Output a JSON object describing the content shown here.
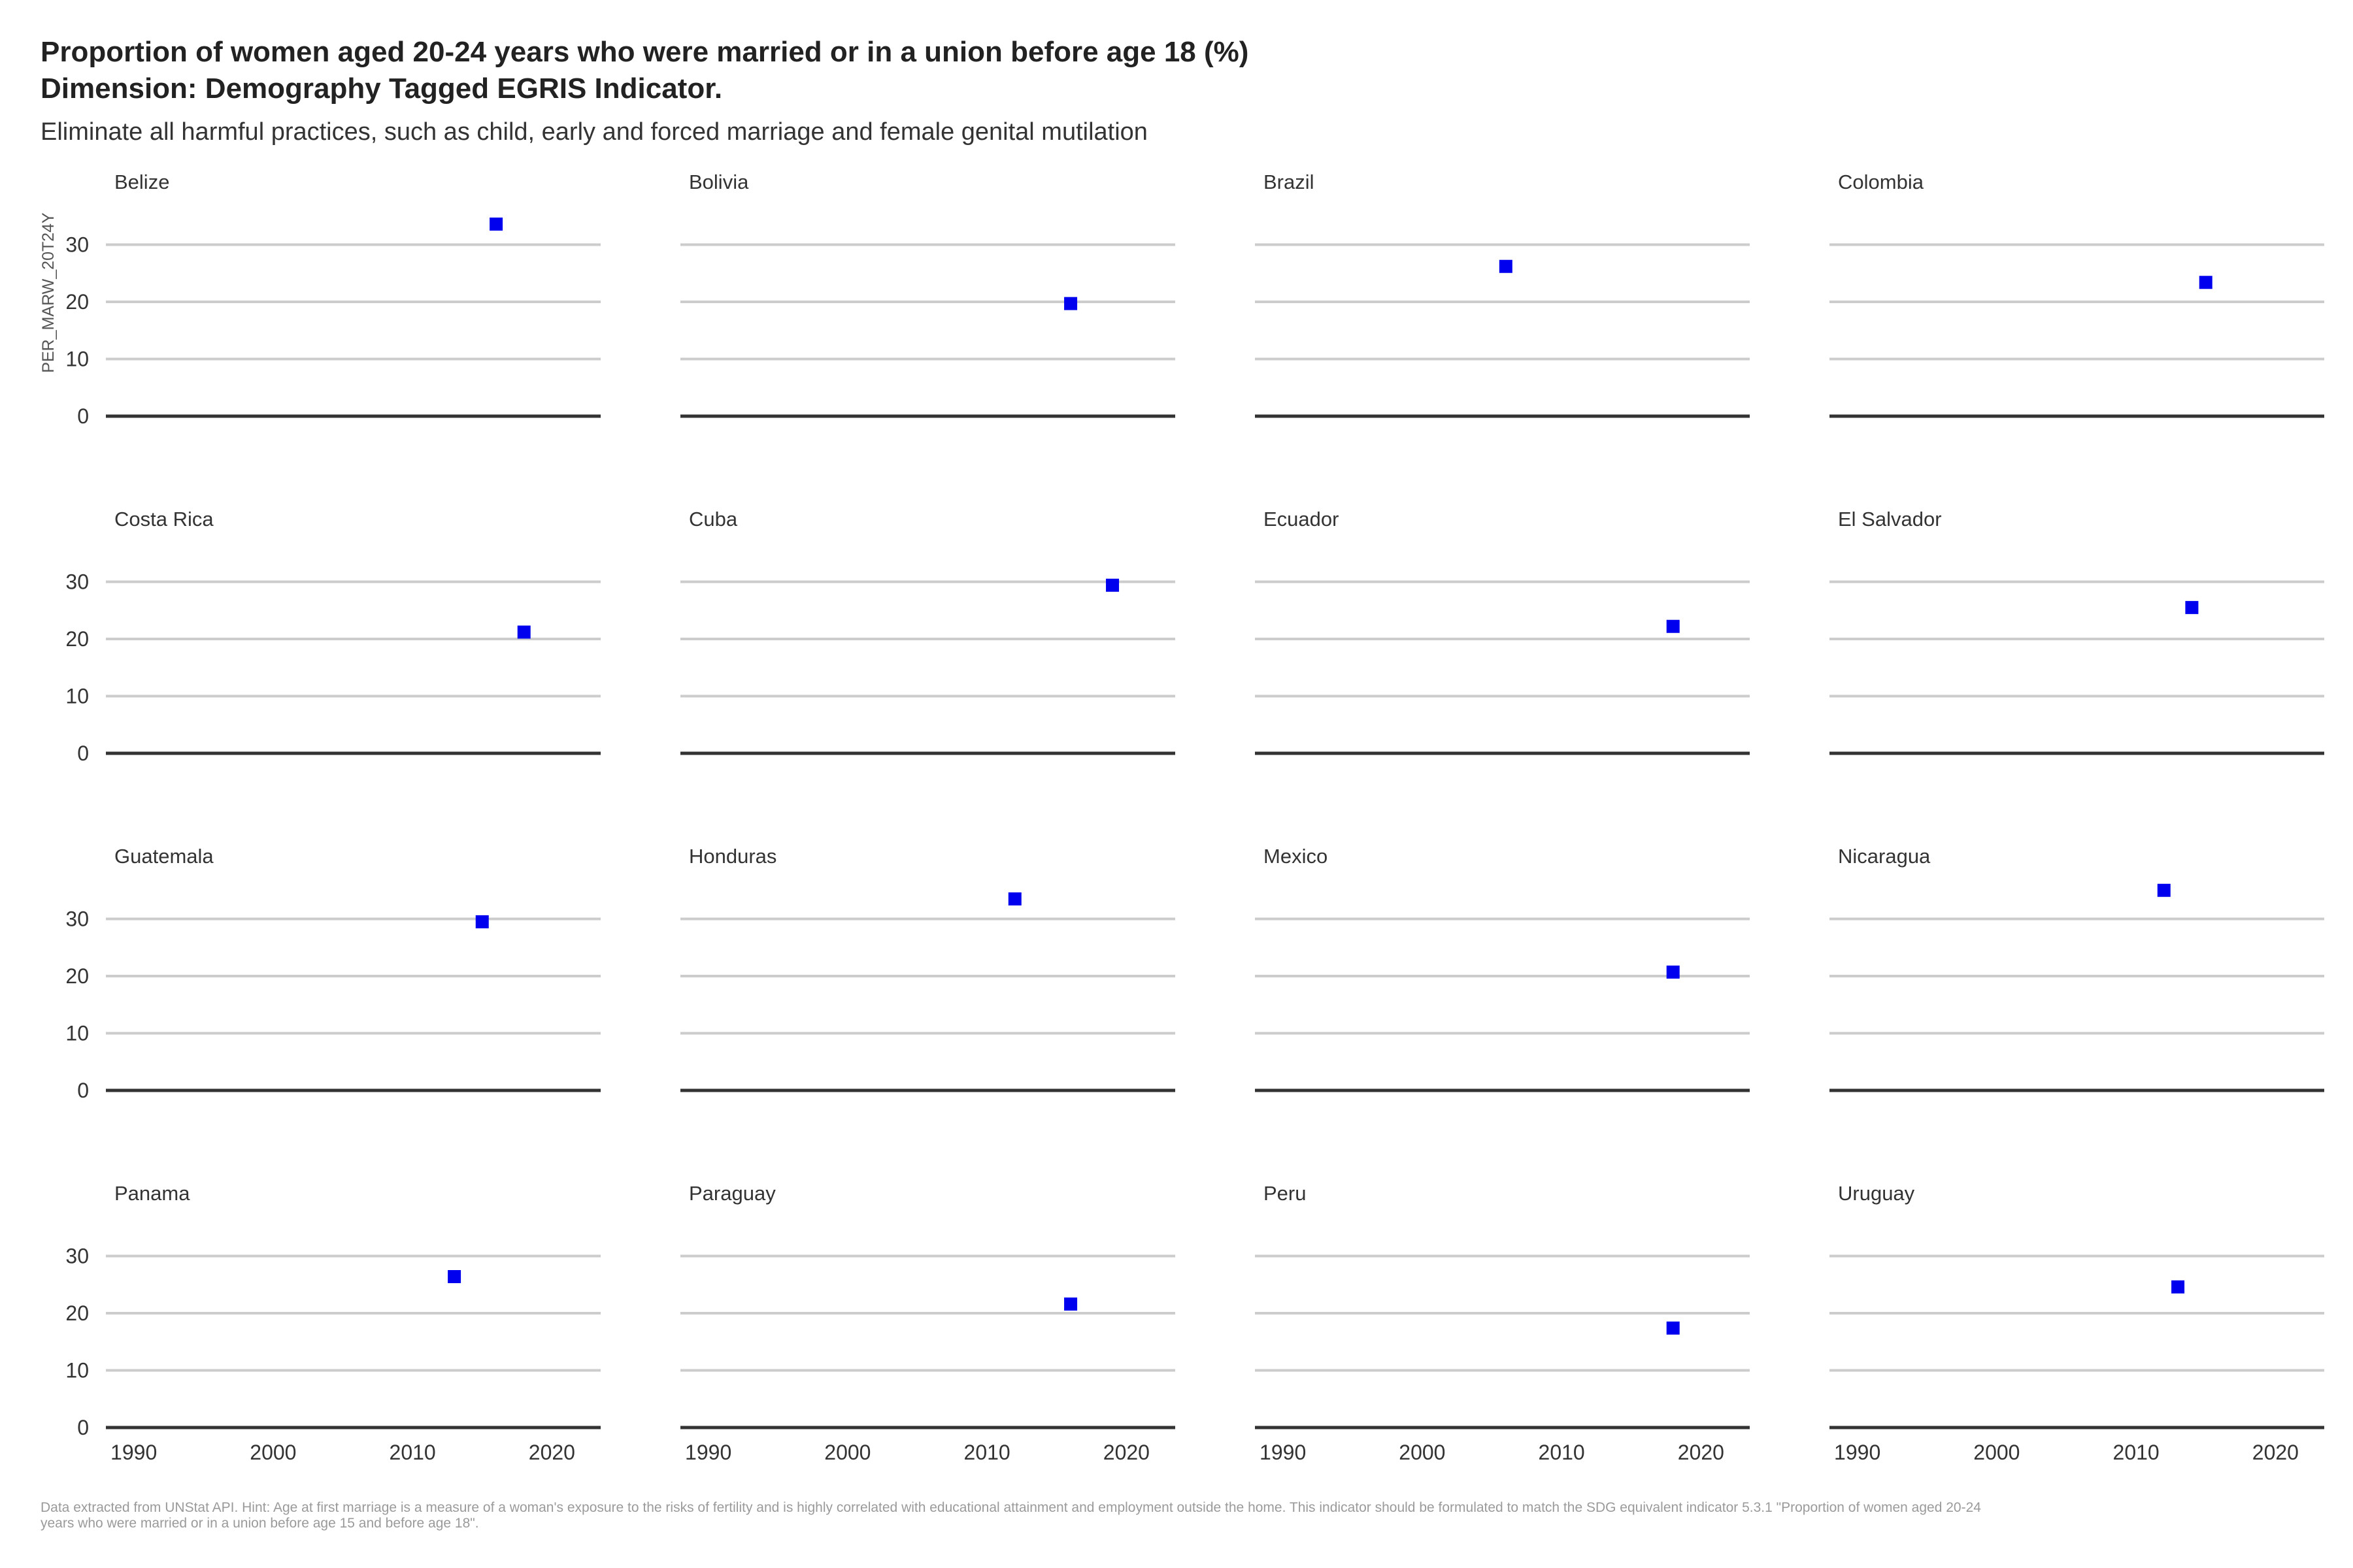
{
  "title_line1": "Proportion of women aged 20-24 years who were married or in a union before age 18 (%)",
  "title_line2": "Dimension: Demography Tagged EGRIS Indicator.",
  "subtitle": "Eliminate all harmful practices, such as child, early and forced marriage and female genital mutilation",
  "caption_line1": "Data extracted from UNStat API. Hint: Age at first marriage is a measure of a woman's exposure to the risks of fertility and is highly correlated with educational attainment and employment outside the home. This indicator should be formulated to match the SDG equivalent indicator 5.3.1 \"Proportion of women aged 20-24",
  "caption_line2": "years who were married or in a union before age 15 and before age 18\".",
  "colors": {
    "point": "#0000ee",
    "grid": "#cccccc",
    "baseline": "#333333"
  },
  "chart_data": {
    "type": "scatter",
    "facet": "small-multiples",
    "ylabel": "PER_MARW_20T24Y",
    "xlim": [
      1988,
      2023.5
    ],
    "ylim": [
      0,
      36
    ],
    "x_ticks": [
      1990,
      2000,
      2010,
      2020
    ],
    "y_ticks": [
      0,
      10,
      20,
      30
    ],
    "grid": true,
    "marker": "square",
    "series": [
      {
        "name": "Belize",
        "x": [
          2016
        ],
        "y": [
          33.6
        ]
      },
      {
        "name": "Bolivia",
        "x": [
          2016
        ],
        "y": [
          19.7
        ]
      },
      {
        "name": "Brazil",
        "x": [
          2006
        ],
        "y": [
          26.2
        ]
      },
      {
        "name": "Colombia",
        "x": [
          2015
        ],
        "y": [
          23.4
        ]
      },
      {
        "name": "Costa Rica",
        "x": [
          2018
        ],
        "y": [
          21.2
        ]
      },
      {
        "name": "Cuba",
        "x": [
          2019
        ],
        "y": [
          29.4
        ]
      },
      {
        "name": "Ecuador",
        "x": [
          2018
        ],
        "y": [
          22.2
        ]
      },
      {
        "name": "El Salvador",
        "x": [
          2014
        ],
        "y": [
          25.5
        ]
      },
      {
        "name": "Guatemala",
        "x": [
          2015
        ],
        "y": [
          29.5
        ]
      },
      {
        "name": "Honduras",
        "x": [
          2012
        ],
        "y": [
          33.5
        ]
      },
      {
        "name": "Mexico",
        "x": [
          2018
        ],
        "y": [
          20.7
        ]
      },
      {
        "name": "Nicaragua",
        "x": [
          2012
        ],
        "y": [
          35.0
        ]
      },
      {
        "name": "Panama",
        "x": [
          2013
        ],
        "y": [
          26.4
        ]
      },
      {
        "name": "Paraguay",
        "x": [
          2016
        ],
        "y": [
          21.6
        ]
      },
      {
        "name": "Peru",
        "x": [
          2018
        ],
        "y": [
          17.4
        ]
      },
      {
        "name": "Uruguay",
        "x": [
          2013
        ],
        "y": [
          24.6
        ]
      }
    ]
  }
}
